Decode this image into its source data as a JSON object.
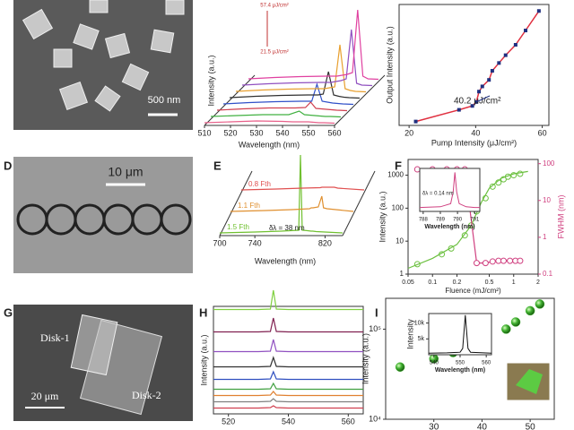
{
  "images": [
    {
      "scale_bar": "500 nm"
    },
    {
      "panel": "D",
      "scale_bar": "10 μm"
    },
    {
      "panel": "G",
      "scale_bar": "20 μm",
      "labels": [
        "Disk-1",
        "Disk-2"
      ]
    }
  ],
  "chart_data": [
    {
      "type": "waterfall",
      "x_label": "Wavelength (nm)",
      "y_label": "Intensity (a.u.)",
      "annotations": [
        "57.4 μJ/cm²",
        "21.5 μJ/cm²"
      ],
      "xlim": [
        510,
        560
      ],
      "xticks": [
        510,
        520,
        530,
        540,
        550,
        560
      ],
      "x": [
        510,
        520,
        530,
        540,
        544,
        546,
        548,
        550,
        552,
        554,
        556,
        560
      ],
      "series": [
        {
          "color": "#e8608a",
          "values": [
            0.3,
            0.4,
            0.5,
            0.45,
            0.4,
            0.4,
            0.4,
            0.4,
            0.35,
            0.3,
            0.3,
            0.25
          ]
        },
        {
          "color": "#40b040",
          "values": [
            0.3,
            0.4,
            0.5,
            0.5,
            0.9,
            0.5,
            0.45,
            0.4,
            0.35,
            0.3,
            0.3,
            0.25
          ]
        },
        {
          "color": "#d04050",
          "values": [
            0.3,
            0.45,
            0.55,
            0.55,
            0.6,
            1.2,
            0.5,
            0.45,
            0.4,
            0.35,
            0.3,
            0.25
          ]
        },
        {
          "color": "#3050c8",
          "values": [
            0.3,
            0.45,
            0.55,
            0.6,
            0.6,
            2.5,
            0.6,
            0.5,
            0.4,
            0.35,
            0.3,
            0.25
          ]
        },
        {
          "color": "#303030",
          "values": [
            0.3,
            0.45,
            0.55,
            0.6,
            0.6,
            0.7,
            3.2,
            0.6,
            0.45,
            0.35,
            0.3,
            0.25
          ]
        },
        {
          "color": "#e8a030",
          "values": [
            0.3,
            0.45,
            0.55,
            0.6,
            0.6,
            0.7,
            0.8,
            5.5,
            0.6,
            0.4,
            0.3,
            0.25
          ]
        },
        {
          "color": "#9050c0",
          "values": [
            0.3,
            0.45,
            0.55,
            0.6,
            0.6,
            0.7,
            0.8,
            1,
            6.5,
            0.5,
            0.3,
            0.25
          ]
        },
        {
          "color": "#e040a0",
          "values": [
            0.3,
            0.45,
            0.55,
            0.6,
            0.6,
            0.7,
            0.8,
            1,
            8,
            0.6,
            0.3,
            0.25
          ]
        }
      ]
    },
    {
      "type": "line",
      "x_label": "Pump Intensity (μJ/cm²)",
      "y_label": "Output Intensity (a.u.)",
      "annotations": [
        "40.2 μJ/cm²"
      ],
      "xlim": [
        17,
        62
      ],
      "xticks": [
        20,
        40,
        60
      ],
      "ylim": [
        0,
        9.3
      ],
      "x": [
        22,
        35,
        39,
        40.2,
        41,
        42,
        44,
        45,
        47,
        49,
        52,
        55,
        59
      ],
      "values": [
        0.3,
        1.2,
        1.5,
        1.8,
        2.6,
        3.0,
        3.5,
        4.2,
        4.8,
        5.4,
        6.2,
        7.3,
        8.8
      ],
      "line_color": "#e03040",
      "marker_color": "#203080"
    },
    {
      "type": "waterfall",
      "panel": "E",
      "x_label": "Wavelength (nm)",
      "annotations": [
        "δλ = 38 nm"
      ],
      "xlim": [
        700,
        840
      ],
      "xticks": [
        700,
        740,
        820
      ],
      "x": [
        700,
        740,
        770,
        790,
        792,
        794,
        800,
        804,
        806,
        810,
        840
      ],
      "series": [
        {
          "name": "1.5 Fth",
          "color": "#70c030",
          "values": [
            0.3,
            0.4,
            0.5,
            0.6,
            9,
            0.6,
            0.55,
            0.5,
            0.5,
            0.45,
            0.3
          ]
        },
        {
          "name": "1.1 Fth",
          "color": "#e09030",
          "values": [
            0.3,
            0.4,
            0.5,
            0.6,
            0.7,
            0.7,
            0.8,
            2,
            0.7,
            0.6,
            0.3
          ]
        },
        {
          "name": "0.8 Fth",
          "color": "#e05050",
          "values": [
            0.3,
            0.4,
            0.5,
            0.55,
            0.6,
            0.6,
            0.6,
            0.6,
            0.6,
            0.5,
            0.3
          ]
        }
      ]
    },
    {
      "type": "dual-log",
      "panel": "F",
      "x_label": "Fluence (mJ/cm²)",
      "y_label": "Intensity (a.u.)",
      "y2_label": "FWHM (nm)",
      "xscale": "log",
      "yscale": "log",
      "xlim": [
        0.05,
        2
      ],
      "xticks": [
        0.05,
        0.1,
        0.2,
        0.5,
        1,
        2
      ],
      "ylim": [
        1,
        3000
      ],
      "yticks": [
        1,
        10,
        100,
        1000
      ],
      "y2lim": [
        0.1,
        130
      ],
      "y2ticks": [
        0.1,
        1,
        10,
        100
      ],
      "series": [
        {
          "style": "markers",
          "color": "#6cc040",
          "x": [
            0.065,
            0.13,
            0.17,
            0.25,
            0.3,
            0.35,
            0.45,
            0.55,
            0.65,
            0.75,
            0.85,
            1.0,
            1.2
          ],
          "values": [
            2,
            4,
            6,
            15,
            30,
            80,
            200,
            450,
            600,
            750,
            900,
            1000,
            1100
          ]
        },
        {
          "style": "line",
          "color": "#6cc040",
          "x": [
            0.05,
            0.1,
            0.2,
            0.3,
            0.4,
            0.5,
            0.7,
            1,
            1.5
          ],
          "values": [
            1.5,
            3,
            8,
            30,
            150,
            400,
            800,
            1100,
            1300
          ]
        },
        {
          "style": "line-markers",
          "color": "#d04080",
          "axis": "y2",
          "x": [
            0.065,
            0.1,
            0.15,
            0.2,
            0.25,
            0.35,
            0.45,
            0.55,
            0.65,
            0.75,
            0.9,
            1.05,
            1.2
          ],
          "values": [
            70,
            70,
            70,
            70,
            70,
            0.2,
            0.2,
            0.22,
            0.23,
            0.23,
            0.23,
            0.23,
            0.23
          ]
        }
      ]
    },
    {
      "type": "inset-line",
      "x_label": "Wavelength (nm)",
      "annotations": [
        "δλ = 0.14 nm"
      ],
      "xlim": [
        787.8,
        791.3
      ],
      "xticks": [
        788,
        789,
        790,
        791
      ],
      "ylim": [
        0,
        1.1
      ],
      "x": [
        787.8,
        789,
        789.6,
        789.75,
        789.85,
        789.95,
        790.1,
        790.5,
        791,
        791.3
      ],
      "values": [
        0.1,
        0.12,
        0.2,
        0.5,
        1,
        0.5,
        0.2,
        0.12,
        0.1,
        0.1
      ],
      "color": "#d04080"
    },
    {
      "type": "stacked",
      "panel": "H",
      "y_label": "Intensity (a.u.)",
      "xlim": [
        515,
        565
      ],
      "xticks": [
        520,
        540,
        560
      ],
      "x": [
        515,
        525,
        530,
        534,
        535,
        536,
        540,
        550,
        565
      ],
      "series": [
        {
          "color": "#d04050",
          "values": [
            0.05,
            0.05,
            0.05,
            0.1,
            0.3,
            0.1,
            0.05,
            0.05,
            0.05
          ]
        },
        {
          "color": "#808080",
          "values": [
            0.05,
            0.05,
            0.05,
            0.1,
            0.4,
            0.1,
            0.05,
            0.05,
            0.05
          ]
        },
        {
          "color": "#e08030",
          "values": [
            0.05,
            0.05,
            0.05,
            0.1,
            0.5,
            0.1,
            0.05,
            0.05,
            0.05
          ]
        },
        {
          "color": "#40a040",
          "values": [
            0.05,
            0.05,
            0.05,
            0.1,
            0.7,
            0.1,
            0.05,
            0.05,
            0.05
          ]
        },
        {
          "color": "#3050c0",
          "values": [
            0.05,
            0.05,
            0.05,
            0.1,
            0.9,
            0.1,
            0.05,
            0.05,
            0.05
          ]
        },
        {
          "color": "#303030",
          "values": [
            0.05,
            0.05,
            0.05,
            0.1,
            1.1,
            0.1,
            0.05,
            0.05,
            0.05
          ]
        },
        {
          "color": "#9050c0",
          "values": [
            0.05,
            0.05,
            0.05,
            0.1,
            1.4,
            0.1,
            0.05,
            0.05,
            0.05
          ]
        },
        {
          "color": "#802050",
          "values": [
            0.05,
            0.05,
            0.05,
            0.1,
            1.6,
            0.1,
            0.05,
            0.05,
            0.05
          ]
        },
        {
          "color": "#80d040",
          "values": [
            0.05,
            0.05,
            0.05,
            0.1,
            2.2,
            0.1,
            0.05,
            0.05,
            0.05
          ]
        }
      ]
    },
    {
      "type": "scatter",
      "panel": "I",
      "y_label": "Intensity (a.u.)",
      "yscale": "log",
      "xlim": [
        20,
        55
      ],
      "xticks": [
        30,
        40,
        50
      ],
      "ylim": [
        10000,
        220000
      ],
      "yticks": [
        {
          "value": 10000,
          "label": "10⁴"
        },
        {
          "value": 100000,
          "label": "10⁵"
        }
      ],
      "x": [
        23,
        30,
        34,
        39,
        41,
        45,
        47,
        50,
        52
      ],
      "values": [
        38000,
        47000,
        55000,
        70000,
        85000,
        100000,
        120000,
        160000,
        190000
      ],
      "color": "#40b030"
    },
    {
      "type": "inset-line",
      "x_label": "Wavelength (nm)",
      "y_label": "Intensity",
      "xlim": [
        538,
        562
      ],
      "xticks": [
        540,
        550,
        560
      ],
      "ylim": [
        0,
        13000
      ],
      "yticks": [
        {
          "value": 5000,
          "label": "5k"
        },
        {
          "value": 10000,
          "label": "10k"
        }
      ],
      "x": [
        538,
        545,
        550,
        551,
        552,
        553,
        554,
        562
      ],
      "values": [
        500,
        600,
        800,
        2000,
        12500,
        2000,
        800,
        500
      ],
      "color": "#111111"
    }
  ]
}
